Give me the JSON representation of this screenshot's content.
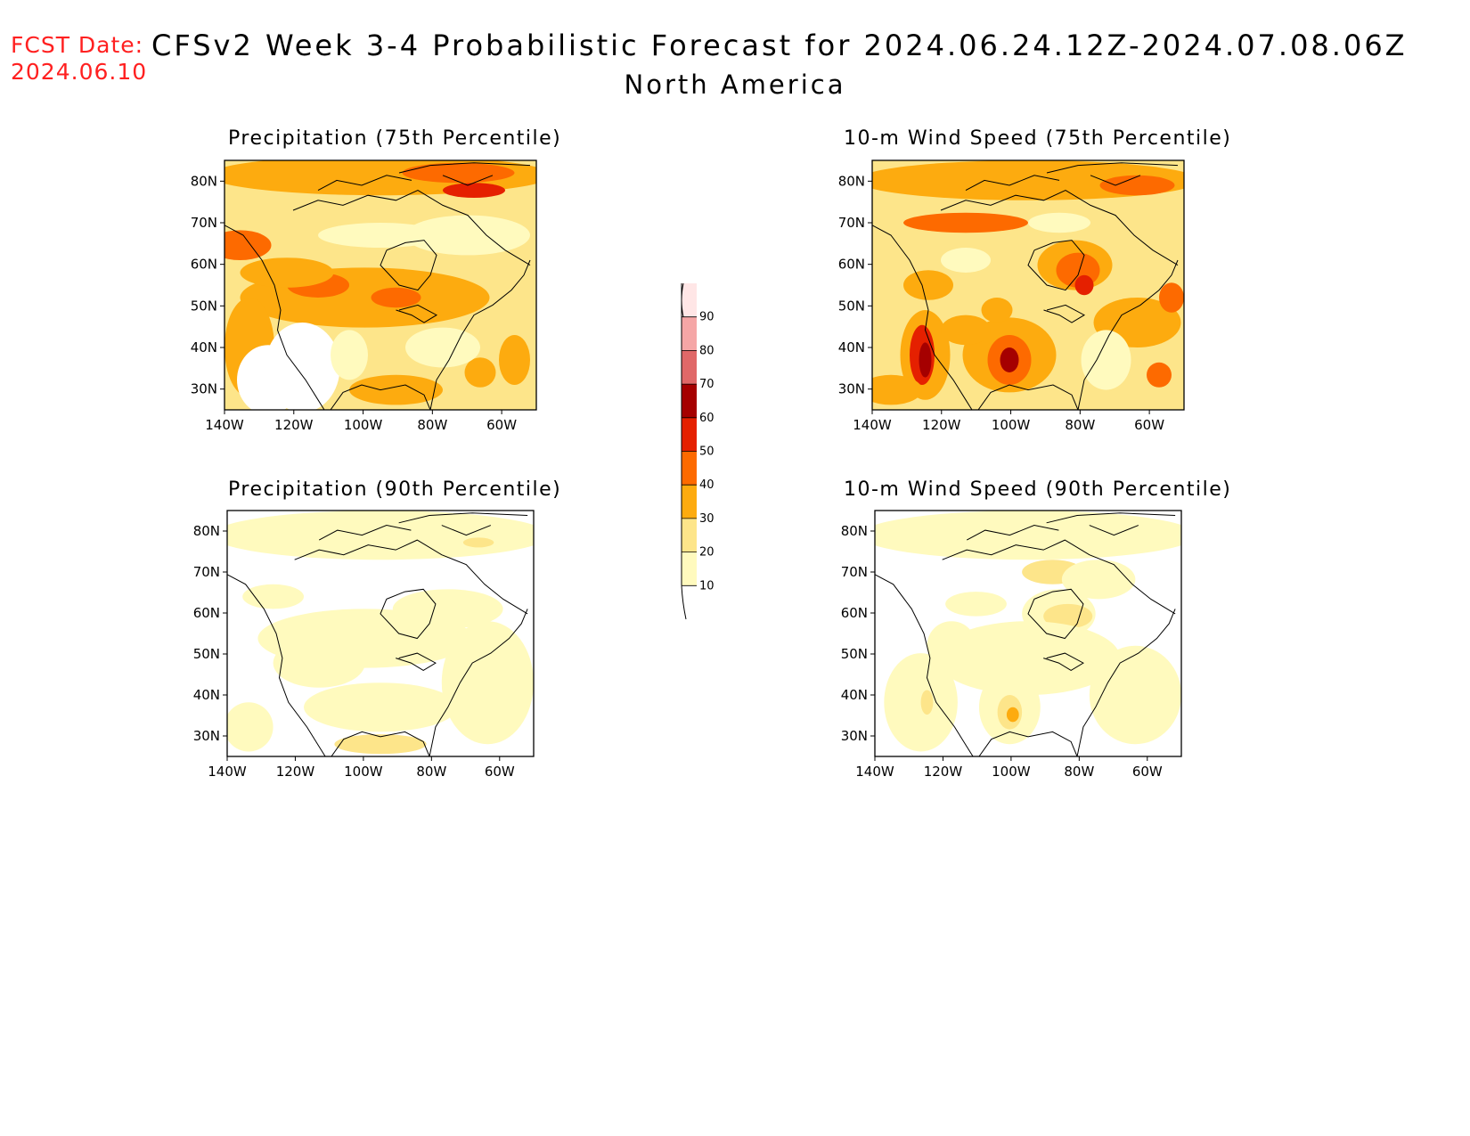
{
  "header": {
    "fcst_label": "FCST Date:",
    "fcst_date": "2024.06.10",
    "title": "CFSv2 Week 3-4 Probabilistic Forecast for 2024.06.24.12Z-2024.07.08.06Z",
    "region": "North America"
  },
  "panels": [
    {
      "id": "precip75",
      "title": "Precipitation (75th Percentile)"
    },
    {
      "id": "wind75",
      "title": "10-m Wind Speed (75th Percentile)"
    },
    {
      "id": "precip90",
      "title": "Precipitation (90th Percentile)"
    },
    {
      "id": "wind90",
      "title": "10-m Wind Speed (90th Percentile)"
    }
  ],
  "axes": {
    "lat_labels": [
      "80N",
      "70N",
      "60N",
      "50N",
      "40N",
      "30N"
    ],
    "lon_labels": [
      "140W",
      "120W",
      "100W",
      "80W",
      "60W"
    ],
    "lat_values": [
      80,
      70,
      60,
      50,
      40,
      30
    ],
    "lon_values": [
      -140,
      -120,
      -100,
      -80,
      -60
    ],
    "lat_range": [
      25,
      85
    ],
    "lon_range": [
      -140,
      -50
    ]
  },
  "colorbar": {
    "levels": [
      "10",
      "20",
      "30",
      "40",
      "50",
      "60",
      "70",
      "80",
      "90"
    ],
    "colors": [
      "#fffabe",
      "#fde58a",
      "#fdab0f",
      "#fd6a00",
      "#e52000",
      "#a50000",
      "#e06868",
      "#f5a6a6",
      "#ffe6e6"
    ]
  }
}
